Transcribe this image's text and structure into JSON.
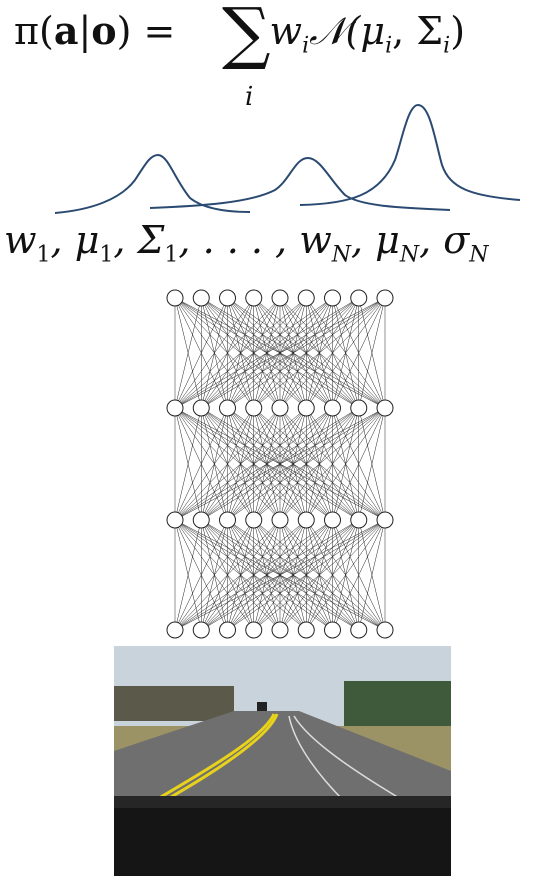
{
  "equation": {
    "lhs_pi": "π(",
    "lhs_a": "a",
    "lhs_bar": "|",
    "lhs_o": "o",
    "lhs_close": ") =",
    "sum_symbol": "∑",
    "sum_index": "i",
    "rhs": "w",
    "rhs_sub": "i",
    "rhs_normal": "𝒩(μ",
    "rhs_mu_sub": "i",
    "rhs_comma": ", Σ",
    "rhs_sigma_sub": "i",
    "rhs_close": ")"
  },
  "params": {
    "w1": "w",
    "sub1": "1",
    "mu1": ", μ",
    "sub2": "1",
    "Sigma1": ", Σ",
    "sub3": "1",
    "dots": ", . . . , w",
    "subN1": "N",
    "muN": ", μ",
    "subN2": "N",
    "sigmaN": ", σ",
    "subN3": "N"
  },
  "network": {
    "layers": [
      9,
      9,
      9,
      9
    ],
    "node_color": "#ffffff",
    "edge_color": "#222222"
  },
  "curves": {
    "color": "#2b4a72",
    "count": 3
  },
  "road_image": {
    "sky_color": "#c9d3dc",
    "road_color": "#6f6f6f",
    "grass_color": "#9b9266",
    "lane_color": "#e8d21a"
  }
}
